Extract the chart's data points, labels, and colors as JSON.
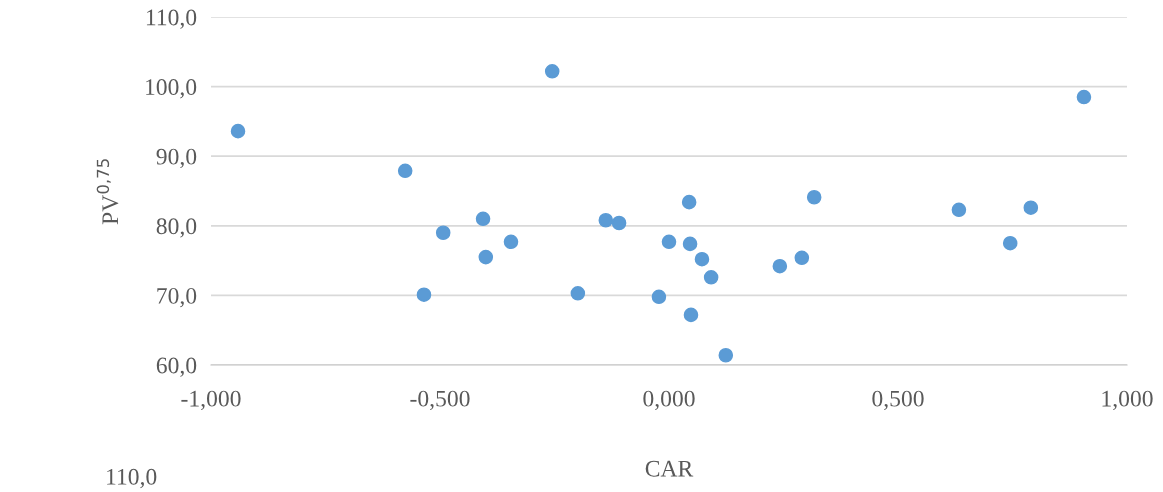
{
  "chart_data": {
    "type": "scatter",
    "xlabel": "CAR",
    "ylabel": "PV$^{0,75}$",
    "x": [
      -0.941,
      -0.576,
      -0.255,
      0.906,
      -0.406,
      -0.493,
      -0.4,
      -0.345,
      -0.535,
      -0.199,
      -0.138,
      -0.109,
      0.0,
      -0.022,
      0.044,
      0.046,
      0.072,
      0.092,
      0.048,
      0.124,
      0.242,
      0.29,
      0.317,
      0.633,
      0.79,
      0.745
    ],
    "series": [
      {
        "color": "#5b9bd5",
        "values": [
          93.6,
          87.9,
          102.2,
          98.5,
          81.0,
          79.0,
          75.5,
          77.7,
          70.1,
          70.3,
          80.8,
          80.4,
          77.7,
          69.8,
          83.4,
          77.4,
          75.2,
          72.6,
          67.2,
          61.4,
          74.2,
          75.4,
          84.1,
          82.3,
          82.6,
          77.5
        ]
      }
    ],
    "xlim": [
      -1,
      1
    ],
    "ylim": [
      60,
      110
    ],
    "xticks": [
      {
        "value": -1,
        "label": "-1,000"
      },
      {
        "value": -0.5,
        "label": "-0,500"
      },
      {
        "value": 0,
        "label": "0,000"
      },
      {
        "value": 0.5,
        "label": "0,500"
      },
      {
        "value": 1,
        "label": "1,000"
      }
    ],
    "yticks": [
      {
        "value": 60,
        "label": "60,0"
      },
      {
        "value": 70,
        "label": "70,0"
      },
      {
        "value": 80,
        "label": "80,0"
      },
      {
        "value": 90,
        "label": "90,0"
      },
      {
        "value": 100,
        "label": "100,0"
      },
      {
        "value": 110,
        "label": "110,0"
      }
    ],
    "grid": "y",
    "marker": "circle",
    "annotations": [
      "110,0"
    ]
  }
}
